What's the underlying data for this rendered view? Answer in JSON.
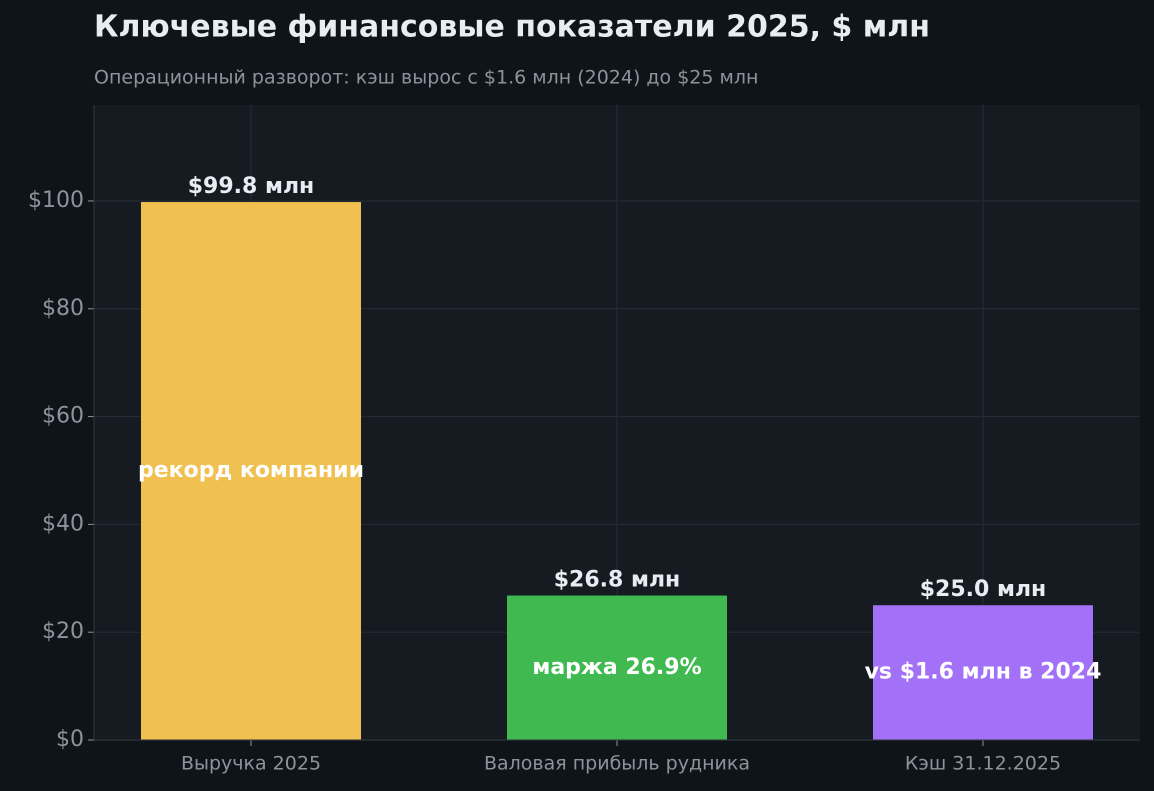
{
  "chart_data": {
    "type": "bar",
    "title": "Ключевые финансовые показатели 2025, $ млн",
    "subtitle": "Операционный разворот: кэш вырос с $1.6 млн (2024) до $25 млн",
    "categories": [
      "Выручка 2025",
      "Валовая прибыль рудника",
      "Кэш 31.12.2025"
    ],
    "values": [
      99.8,
      26.8,
      25.0
    ],
    "value_labels": [
      "$99.8 млн",
      "$26.8 млн",
      "$25.0 млн"
    ],
    "colors": [
      "#f0c050",
      "#3fb950",
      "#a371f7"
    ],
    "annotations": [
      "рекорд компании",
      "маржа 26.9%",
      "vs $1.6 млн в 2024"
    ],
    "ylim": [
      0,
      117.8
    ],
    "yticks": [
      {
        "value": 0,
        "label": "$0"
      },
      {
        "value": 20,
        "label": "$20"
      },
      {
        "value": 40,
        "label": "$40"
      },
      {
        "value": 60,
        "label": "$60"
      },
      {
        "value": 80,
        "label": "$80"
      },
      {
        "value": 100,
        "label": "$100"
      }
    ],
    "grid": true
  }
}
